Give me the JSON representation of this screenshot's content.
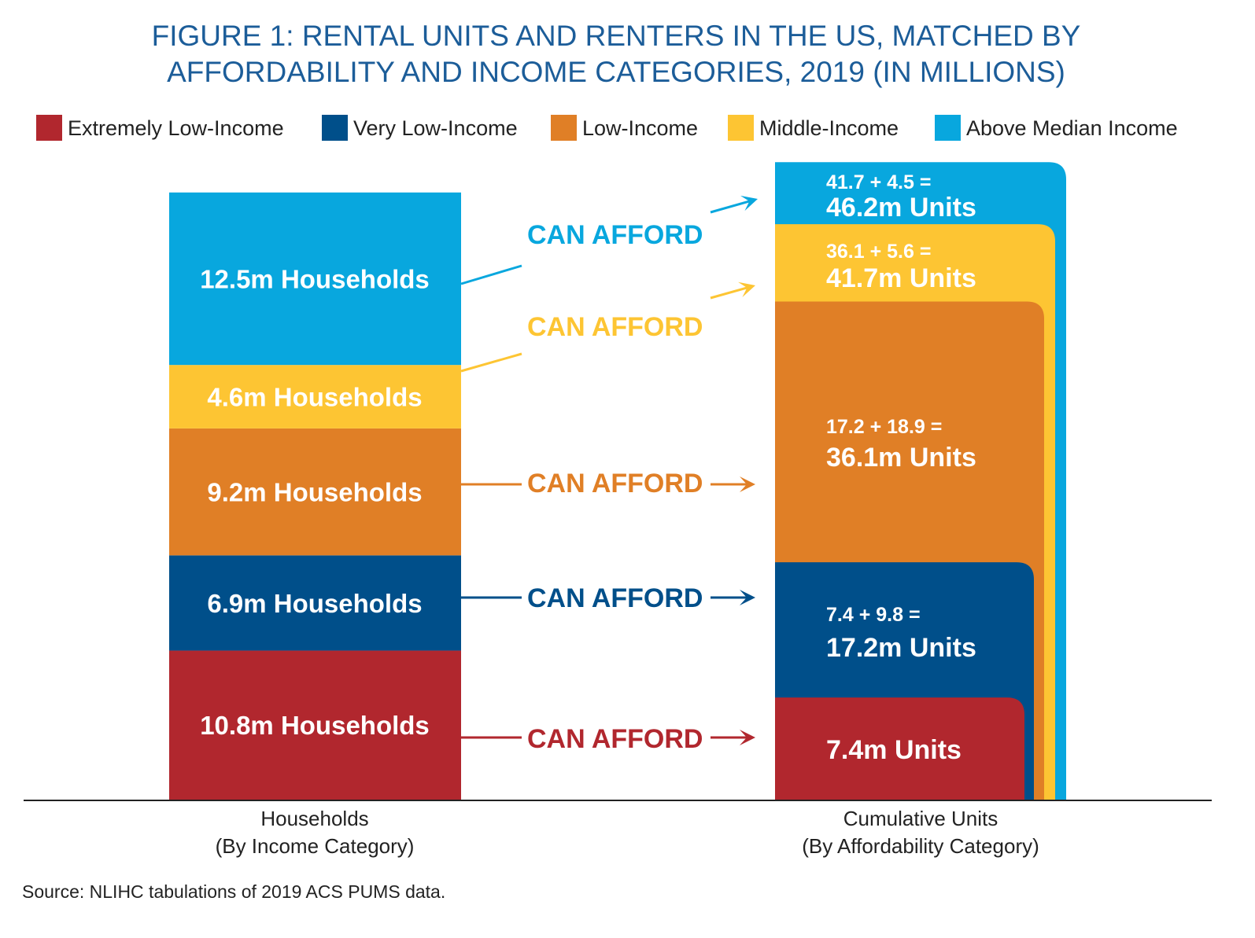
{
  "chart_data": {
    "type": "bar",
    "title": [
      "FIGURE 1: RENTAL UNITS AND RENTERS IN THE US, MATCHED BY",
      "AFFORDABILITY AND INCOME CATEGORIES, 2019 (IN MILLIONS)"
    ],
    "legend_position": "top",
    "legend": [
      {
        "name": "Extremely Low-Income",
        "color": "#b1272e"
      },
      {
        "name": "Very Low-Income",
        "color": "#004f8a"
      },
      {
        "name": "Low-Income",
        "color": "#e07f26"
      },
      {
        "name": "Middle-Income",
        "color": "#fdc533"
      },
      {
        "name": "Above Median Income",
        "color": "#08a7de"
      }
    ],
    "categories": [
      [
        "Households",
        "(By Income Category)"
      ],
      [
        "Cumulative Units",
        "(By Affordability Category)"
      ]
    ],
    "households": {
      "values": [
        10.8,
        6.9,
        9.2,
        4.6,
        12.5
      ],
      "labels": [
        "10.8m Households",
        "6.9m Households",
        "9.2m Households",
        "4.6m Households",
        "12.5m Households"
      ]
    },
    "cumulative_units": {
      "values": [
        7.4,
        17.2,
        36.1,
        41.7,
        46.2
      ],
      "formulas": [
        "",
        "7.4 + 9.8 =",
        "17.2 + 18.9 =",
        "36.1 + 5.6 =",
        "41.7 + 4.5 ="
      ],
      "labels": [
        "7.4m Units",
        "17.2m Units",
        "36.1m Units",
        "41.7m Units",
        "46.2m Units"
      ]
    },
    "connector_label": "CAN AFFORD",
    "grid": false,
    "source": "Source: NLIHC tabulations of 2019 ACS PUMS data."
  }
}
